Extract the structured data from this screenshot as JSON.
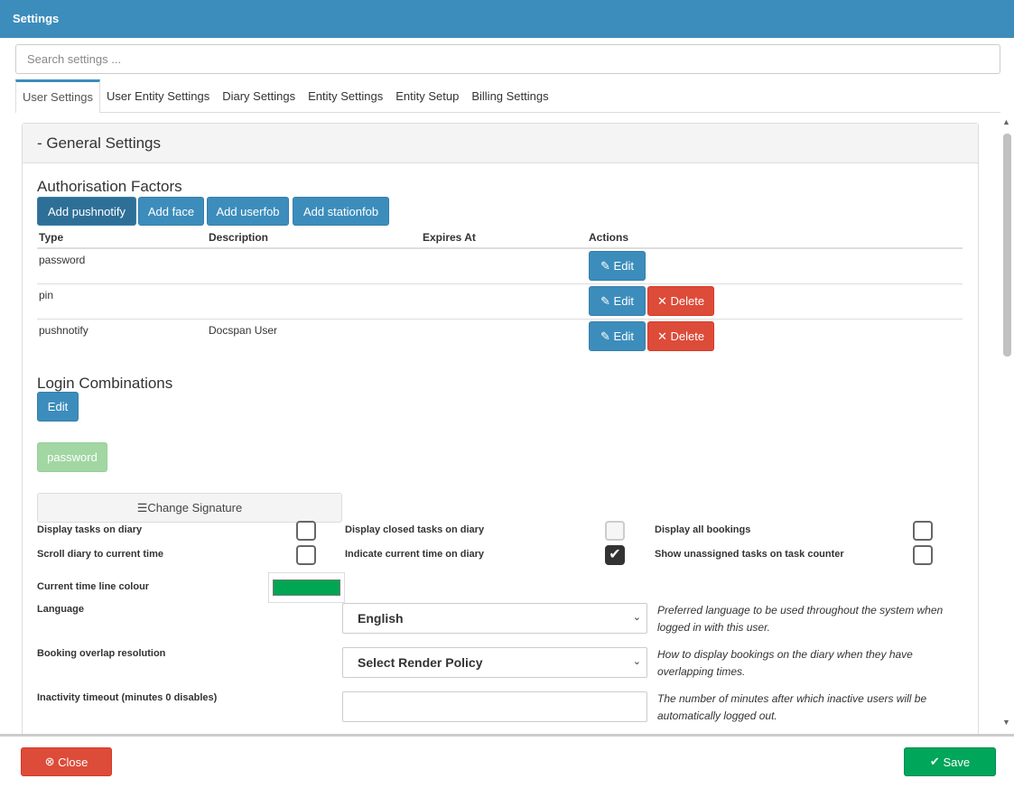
{
  "header": {
    "title": "Settings"
  },
  "search": {
    "placeholder": "Search settings ..."
  },
  "tabs": [
    {
      "label": "User Settings",
      "active": true
    },
    {
      "label": "User Entity Settings"
    },
    {
      "label": "Diary Settings"
    },
    {
      "label": "Entity Settings"
    },
    {
      "label": "Entity Setup"
    },
    {
      "label": "Billing Settings"
    }
  ],
  "panel": {
    "title": "- General Settings"
  },
  "auth": {
    "title": "Authorisation Factors",
    "buttons": [
      "Add pushnotify",
      "Add face",
      "Add userfob",
      "Add stationfob"
    ],
    "columns": [
      "Type",
      "Description",
      "Expires At",
      "Actions"
    ],
    "rows": [
      {
        "type": "password",
        "description": "",
        "expires": "",
        "actions": [
          "Edit"
        ]
      },
      {
        "type": "pin",
        "description": "",
        "expires": "",
        "actions": [
          "Edit",
          "Delete"
        ]
      },
      {
        "type": "pushnotify",
        "description": "Docspan User",
        "expires": "",
        "actions": [
          "Edit",
          "Delete"
        ]
      }
    ],
    "edit_label": "Edit",
    "delete_label": "Delete"
  },
  "login": {
    "title": "Login Combinations",
    "edit_label": "Edit",
    "combination": "password"
  },
  "signature": {
    "label": "Change Signature"
  },
  "checkboxes": [
    {
      "label": "Display tasks on diary",
      "checked": false
    },
    {
      "label": "Display closed tasks on diary",
      "checked": false,
      "disabled": true
    },
    {
      "label": "Display all bookings",
      "checked": false
    },
    {
      "label": "Scroll diary to current time",
      "checked": false
    },
    {
      "label": "Indicate current time on diary",
      "checked": true
    },
    {
      "label": "Show unassigned tasks on task counter",
      "checked": false
    }
  ],
  "colour": {
    "label": "Current time line colour",
    "value": "#00a651"
  },
  "language": {
    "label": "Language",
    "value": "English",
    "help": "Preferred language to be used throughout the system when logged in with this user."
  },
  "overlap": {
    "label": "Booking overlap resolution",
    "value": "Select Render Policy",
    "help": "How to display bookings on the diary when they have overlapping times."
  },
  "inactivity": {
    "label": "Inactivity timeout (minutes 0 disables)",
    "value": "",
    "help": "The number of minutes after which inactive users will be automatically logged out."
  },
  "footer": {
    "close_label": "Close",
    "save_label": "Save"
  },
  "colors": {
    "primary": "#3c8dbc",
    "danger": "#dd4b39",
    "success": "#00a65a"
  }
}
